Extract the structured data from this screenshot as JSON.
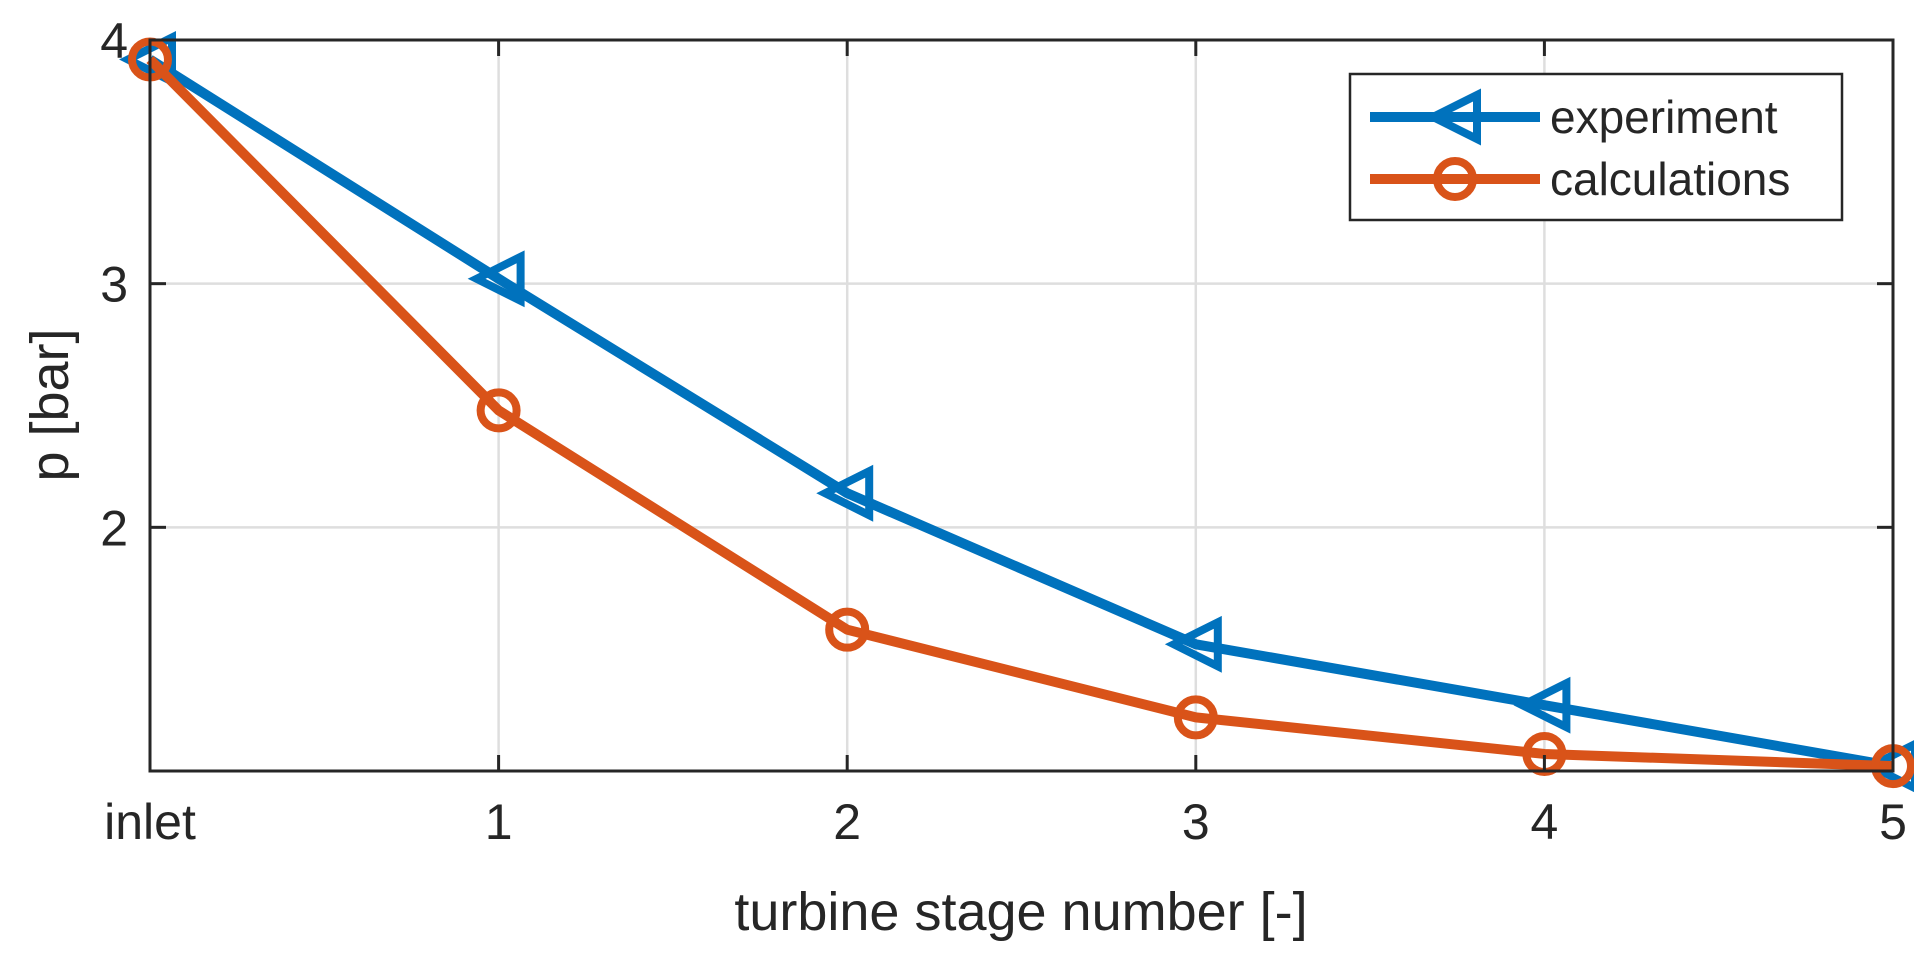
{
  "chart_data": {
    "type": "line",
    "title": "",
    "xlabel": "turbine stage number [-]",
    "ylabel": "p [bar]",
    "categories": [
      "inlet",
      "1",
      "2",
      "3",
      "4",
      "5"
    ],
    "x": [
      0,
      1,
      2,
      3,
      4,
      5
    ],
    "xlim": [
      0,
      5
    ],
    "ylim": [
      1.0,
      4.0
    ],
    "yticks": [
      2,
      3,
      4
    ],
    "ytick_labels": [
      "2",
      "3",
      "4"
    ],
    "grid": true,
    "legend_position": "top-right",
    "series": [
      {
        "name": "experiment",
        "marker": "triangle-left",
        "color": "#0072BD",
        "values": [
          3.92,
          3.02,
          2.14,
          1.52,
          1.27,
          1.02
        ]
      },
      {
        "name": "calculations",
        "marker": "circle",
        "color": "#D95319",
        "values": [
          3.92,
          2.48,
          1.58,
          1.22,
          1.07,
          1.02
        ]
      }
    ]
  }
}
